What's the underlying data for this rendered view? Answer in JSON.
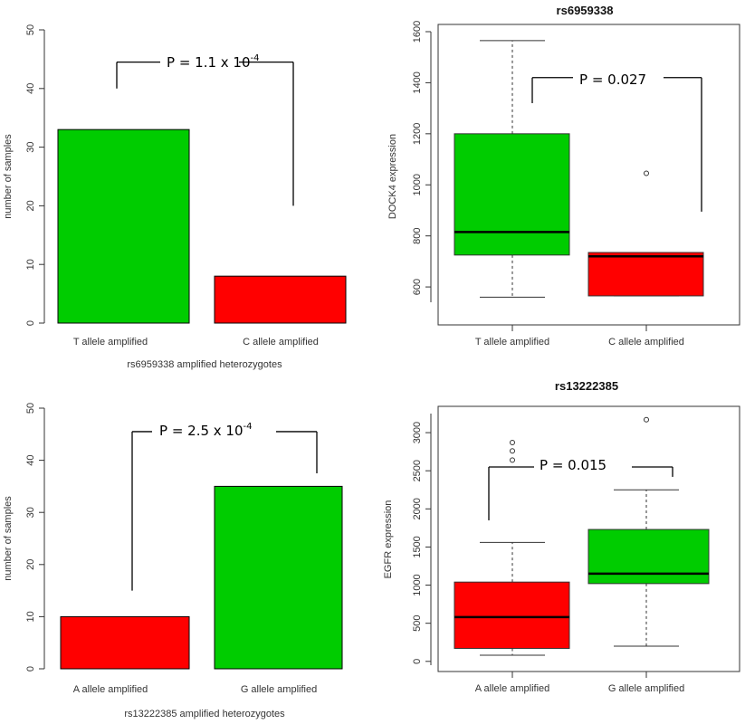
{
  "colors": {
    "green": "#00cc00",
    "red": "#ff0000",
    "axis": "#333333",
    "median": "#000000"
  },
  "chart_data": [
    {
      "id": "p1",
      "type": "bar",
      "title": "",
      "categories": [
        "T allele amplified",
        "C allele amplified"
      ],
      "values": [
        33,
        8
      ],
      "bar_colors": [
        "#00cc00",
        "#ff0000"
      ],
      "xlabel": "rs6959338 amplified heterozygotes",
      "ylabel": "number of samples",
      "ylim": [
        0,
        50
      ],
      "yticks": [
        0,
        10,
        20,
        30,
        40,
        50
      ],
      "annotation": {
        "text": "P = 1.1 x 10",
        "sup": "-4",
        "left_y": 40,
        "right_y": 20,
        "top_y": 44.5
      }
    },
    {
      "id": "p2",
      "type": "box",
      "title": "rs6959338",
      "categories": [
        "T allele amplified",
        "C allele amplified"
      ],
      "boxes": [
        {
          "whisker_low": 560,
          "q1": 725,
          "median": 815,
          "q3": 1200,
          "whisker_high": 1565,
          "outliers": [],
          "color": "#00cc00"
        },
        {
          "whisker_low": 565,
          "q1": 565,
          "median": 720,
          "q3": 735,
          "whisker_high": 735,
          "outliers": [
            1045
          ],
          "color": "#ff0000"
        }
      ],
      "xlabel": "",
      "ylabel": "DOCK4 expression",
      "ylim": [
        540,
        1600
      ],
      "yticks": [
        600,
        800,
        1000,
        1200,
        1400,
        1600
      ],
      "annotation": {
        "text": "P = 0.027",
        "sup": "",
        "left_y": 1320,
        "right_y": 895,
        "top_y": 1420
      }
    },
    {
      "id": "p3",
      "type": "bar",
      "title": "",
      "categories": [
        "A allele amplified",
        "G allele amplified"
      ],
      "values": [
        10,
        35
      ],
      "bar_colors": [
        "#ff0000",
        "#00cc00"
      ],
      "xlabel": "rs13222385 amplified heterozygotes",
      "ylabel": "number of samples",
      "ylim": [
        0,
        50
      ],
      "yticks": [
        0,
        10,
        20,
        30,
        40,
        50
      ],
      "annotation": {
        "text": "P = 2.5 x 10",
        "sup": "-4",
        "left_y": 15,
        "right_y": 37.5,
        "top_y": 45.5
      }
    },
    {
      "id": "p4",
      "type": "box",
      "title": "rs13222385",
      "categories": [
        "A allele amplified",
        "G allele amplified"
      ],
      "boxes": [
        {
          "whisker_low": 80,
          "q1": 170,
          "median": 580,
          "q3": 1040,
          "whisker_high": 1560,
          "outliers": [
            2640,
            2760,
            2870
          ],
          "color": "#ff0000"
        },
        {
          "whisker_low": 200,
          "q1": 1020,
          "median": 1150,
          "q3": 1730,
          "whisker_high": 2250,
          "outliers": [
            3170
          ],
          "color": "#00cc00"
        }
      ],
      "xlabel": "",
      "ylabel": "EGFR expression",
      "ylim": [
        -50,
        3250
      ],
      "yticks": [
        0,
        500,
        1000,
        1500,
        2000,
        2500,
        3000
      ],
      "annotation": {
        "text": "P = 0.015",
        "sup": "",
        "left_y": 1850,
        "right_y": 2420,
        "top_y": 2550
      }
    }
  ]
}
